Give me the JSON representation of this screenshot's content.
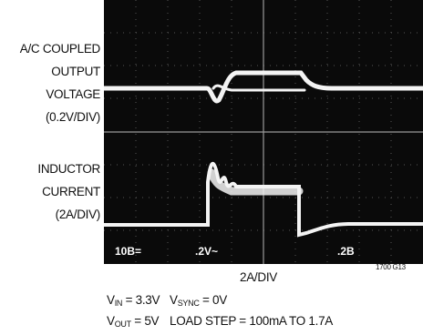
{
  "left_labels": {
    "output": [
      "A/C COUPLED",
      "OUTPUT",
      "VOLTAGE",
      "(0.2V/DIV)"
    ],
    "inductor": [
      "INDUCTOR",
      "CURRENT",
      "(2A/DIV)"
    ]
  },
  "screen_labels": [
    "10B=",
    ".2V~",
    ".2B"
  ],
  "caption": {
    "scale": "2A/DIV",
    "figure_id": "1700 G13",
    "vin": {
      "symbol": "V",
      "sub": "IN",
      "rest": " = 3.3V"
    },
    "vsync": {
      "symbol": "V",
      "sub": "SYNC",
      "rest": " = 0V"
    },
    "vout": {
      "symbol": "V",
      "sub": "OUT",
      "rest": " = 5V"
    },
    "load": "LOAD STEP = 100mA TO 1.7A"
  }
}
